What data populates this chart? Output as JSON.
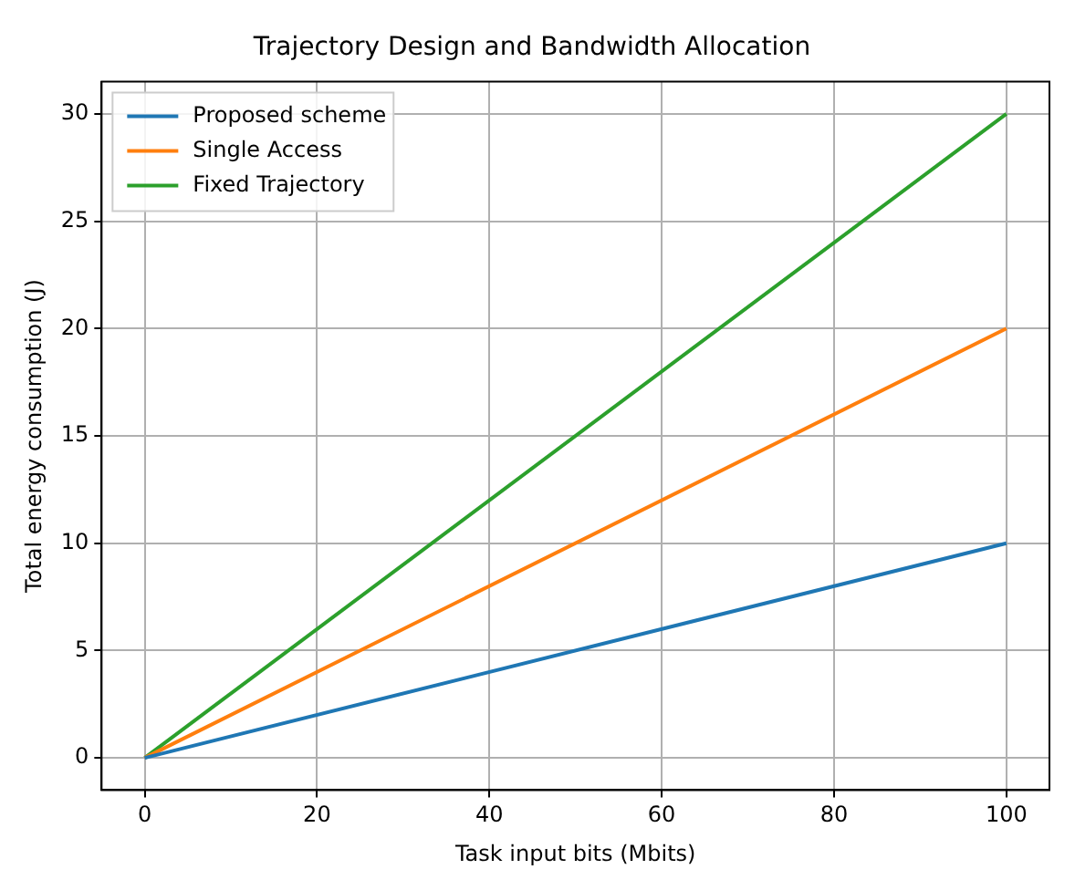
{
  "chart_data": {
    "type": "line",
    "title": "Trajectory Design and Bandwidth Allocation",
    "xlabel": "Task input bits (Mbits)",
    "ylabel": "Total energy consumption (J)",
    "x": [
      0,
      100
    ],
    "series": [
      {
        "name": "Proposed scheme",
        "color": "#1f77b4",
        "values": [
          0,
          10
        ]
      },
      {
        "name": "Single Access",
        "color": "#ff7f0e",
        "values": [
          0,
          20
        ]
      },
      {
        "name": "Fixed Trajectory",
        "color": "#2ca02c",
        "values": [
          0,
          30
        ]
      }
    ],
    "xlim": [
      -5,
      105
    ],
    "xticks": [
      0,
      20,
      40,
      60,
      80,
      100
    ],
    "ylim": [
      -1.5,
      31.5
    ],
    "yticks": [
      0,
      5,
      10,
      15,
      20,
      25,
      30
    ],
    "grid": true,
    "legend": "top left",
    "marker": "none",
    "line_style": "solid"
  }
}
